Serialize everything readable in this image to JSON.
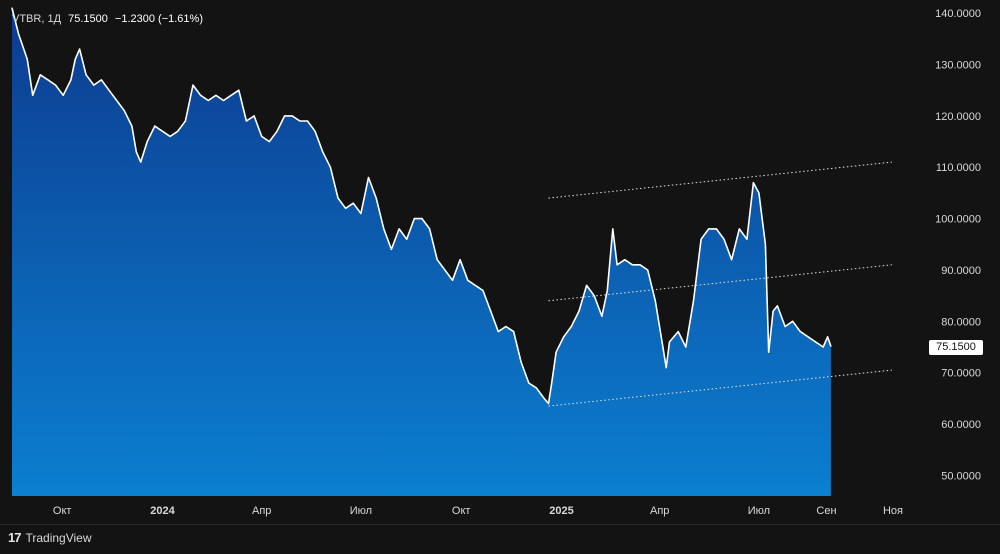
{
  "legend": {
    "symbol": "VTBR, 1Д",
    "last": "75.1500",
    "change": "−1.2300 (−1.61%)"
  },
  "price_tag": "75.1500",
  "branding": {
    "logo_text": "TradingView",
    "logo_mark": "17"
  },
  "colors": {
    "background": "#131313",
    "fill_top": "#0d3b8f",
    "fill_bottom": "#0b7fd0",
    "line": "#ffffff"
  },
  "chart_data": {
    "type": "area",
    "title": "",
    "xlabel": "",
    "ylabel": "",
    "ylim": [
      46,
      141
    ],
    "y_ticks": [
      "50.0000",
      "60.0000",
      "70.0000",
      "80.0000",
      "90.0000",
      "100.0000",
      "110.0000",
      "120.0000",
      "130.0000",
      "140.0000"
    ],
    "x_ticks": [
      "Окт",
      "2024",
      "Апр",
      "Июл",
      "Окт",
      "2025",
      "Апр",
      "Июл",
      "Сен",
      "Ноя"
    ],
    "x_tick_dates": [
      "2023-10-01",
      "2024-01-01",
      "2024-04-01",
      "2024-07-01",
      "2024-10-01",
      "2025-01-01",
      "2025-04-01",
      "2025-07-01",
      "2025-09-01",
      "2025-11-01"
    ],
    "grid": false,
    "series": [
      {
        "values": [
          [
            "2023-08-16",
            141
          ],
          [
            "2023-08-22",
            136
          ],
          [
            "2023-08-30",
            131
          ],
          [
            "2023-09-04",
            124
          ],
          [
            "2023-09-11",
            128
          ],
          [
            "2023-09-18",
            127
          ],
          [
            "2023-09-25",
            126
          ],
          [
            "2023-10-02",
            124
          ],
          [
            "2023-10-09",
            127
          ],
          [
            "2023-10-13",
            131
          ],
          [
            "2023-10-17",
            133
          ],
          [
            "2023-10-23",
            128
          ],
          [
            "2023-10-30",
            126
          ],
          [
            "2023-11-06",
            127
          ],
          [
            "2023-11-13",
            125
          ],
          [
            "2023-11-20",
            123
          ],
          [
            "2023-11-27",
            121
          ],
          [
            "2023-12-04",
            118
          ],
          [
            "2023-12-08",
            113
          ],
          [
            "2023-12-12",
            111
          ],
          [
            "2023-12-18",
            115
          ],
          [
            "2023-12-25",
            118
          ],
          [
            "2024-01-01",
            117
          ],
          [
            "2024-01-08",
            116
          ],
          [
            "2024-01-15",
            117
          ],
          [
            "2024-01-22",
            119
          ],
          [
            "2024-01-29",
            126
          ],
          [
            "2024-02-05",
            124
          ],
          [
            "2024-02-12",
            123
          ],
          [
            "2024-02-19",
            124
          ],
          [
            "2024-02-26",
            123
          ],
          [
            "2024-03-04",
            124
          ],
          [
            "2024-03-11",
            125
          ],
          [
            "2024-03-18",
            119
          ],
          [
            "2024-03-25",
            120
          ],
          [
            "2024-04-01",
            116
          ],
          [
            "2024-04-08",
            115
          ],
          [
            "2024-04-15",
            117
          ],
          [
            "2024-04-22",
            120
          ],
          [
            "2024-04-29",
            120
          ],
          [
            "2024-05-06",
            119
          ],
          [
            "2024-05-13",
            119
          ],
          [
            "2024-05-20",
            117
          ],
          [
            "2024-05-27",
            113
          ],
          [
            "2024-06-03",
            110
          ],
          [
            "2024-06-10",
            104
          ],
          [
            "2024-06-17",
            102
          ],
          [
            "2024-06-24",
            103
          ],
          [
            "2024-07-01",
            101
          ],
          [
            "2024-07-08",
            108
          ],
          [
            "2024-07-15",
            104
          ],
          [
            "2024-07-22",
            98
          ],
          [
            "2024-07-29",
            94
          ],
          [
            "2024-08-05",
            98
          ],
          [
            "2024-08-12",
            96
          ],
          [
            "2024-08-19",
            100
          ],
          [
            "2024-08-26",
            100
          ],
          [
            "2024-09-02",
            98
          ],
          [
            "2024-09-09",
            92
          ],
          [
            "2024-09-16",
            90
          ],
          [
            "2024-09-23",
            88
          ],
          [
            "2024-09-30",
            92
          ],
          [
            "2024-10-07",
            88
          ],
          [
            "2024-10-14",
            87
          ],
          [
            "2024-10-21",
            86
          ],
          [
            "2024-10-28",
            82
          ],
          [
            "2024-11-04",
            78
          ],
          [
            "2024-11-11",
            79
          ],
          [
            "2024-11-18",
            78
          ],
          [
            "2024-11-25",
            72
          ],
          [
            "2024-12-02",
            68
          ],
          [
            "2024-12-09",
            67
          ],
          [
            "2024-12-16",
            65
          ],
          [
            "2024-12-20",
            64
          ],
          [
            "2024-12-23",
            68
          ],
          [
            "2024-12-27",
            74
          ],
          [
            "2025-01-03",
            77
          ],
          [
            "2025-01-10",
            79
          ],
          [
            "2025-01-17",
            82
          ],
          [
            "2025-01-24",
            87
          ],
          [
            "2025-01-31",
            85
          ],
          [
            "2025-02-07",
            81
          ],
          [
            "2025-02-12",
            86
          ],
          [
            "2025-02-17",
            98
          ],
          [
            "2025-02-21",
            91
          ],
          [
            "2025-02-28",
            92
          ],
          [
            "2025-03-07",
            91
          ],
          [
            "2025-03-14",
            91
          ],
          [
            "2025-03-21",
            90
          ],
          [
            "2025-03-28",
            84
          ],
          [
            "2025-04-04",
            75
          ],
          [
            "2025-04-07",
            71
          ],
          [
            "2025-04-10",
            76
          ],
          [
            "2025-04-18",
            78
          ],
          [
            "2025-04-25",
            75
          ],
          [
            "2025-05-02",
            84
          ],
          [
            "2025-05-09",
            96
          ],
          [
            "2025-05-16",
            98
          ],
          [
            "2025-05-23",
            98
          ],
          [
            "2025-05-30",
            96
          ],
          [
            "2025-06-06",
            92
          ],
          [
            "2025-06-13",
            98
          ],
          [
            "2025-06-20",
            96
          ],
          [
            "2025-06-26",
            107
          ],
          [
            "2025-07-01",
            105
          ],
          [
            "2025-07-07",
            95
          ],
          [
            "2025-07-10",
            74
          ],
          [
            "2025-07-14",
            82
          ],
          [
            "2025-07-18",
            83
          ],
          [
            "2025-07-25",
            79
          ],
          [
            "2025-08-01",
            80
          ],
          [
            "2025-08-08",
            78
          ],
          [
            "2025-08-15",
            77
          ],
          [
            "2025-08-22",
            76
          ],
          [
            "2025-08-29",
            75
          ],
          [
            "2025-09-02",
            77
          ],
          [
            "2025-09-05",
            75.15
          ]
        ]
      }
    ],
    "annotations": [
      {
        "type": "dotted-trendline",
        "from": [
          "2024-12-20",
          104
        ],
        "to": [
          "2025-10-31",
          111
        ]
      },
      {
        "type": "dotted-trendline",
        "from": [
          "2024-12-20",
          84
        ],
        "to": [
          "2025-10-31",
          91
        ]
      },
      {
        "type": "dotted-trendline",
        "from": [
          "2024-12-20",
          63.5
        ],
        "to": [
          "2025-10-31",
          70.5
        ]
      }
    ]
  }
}
